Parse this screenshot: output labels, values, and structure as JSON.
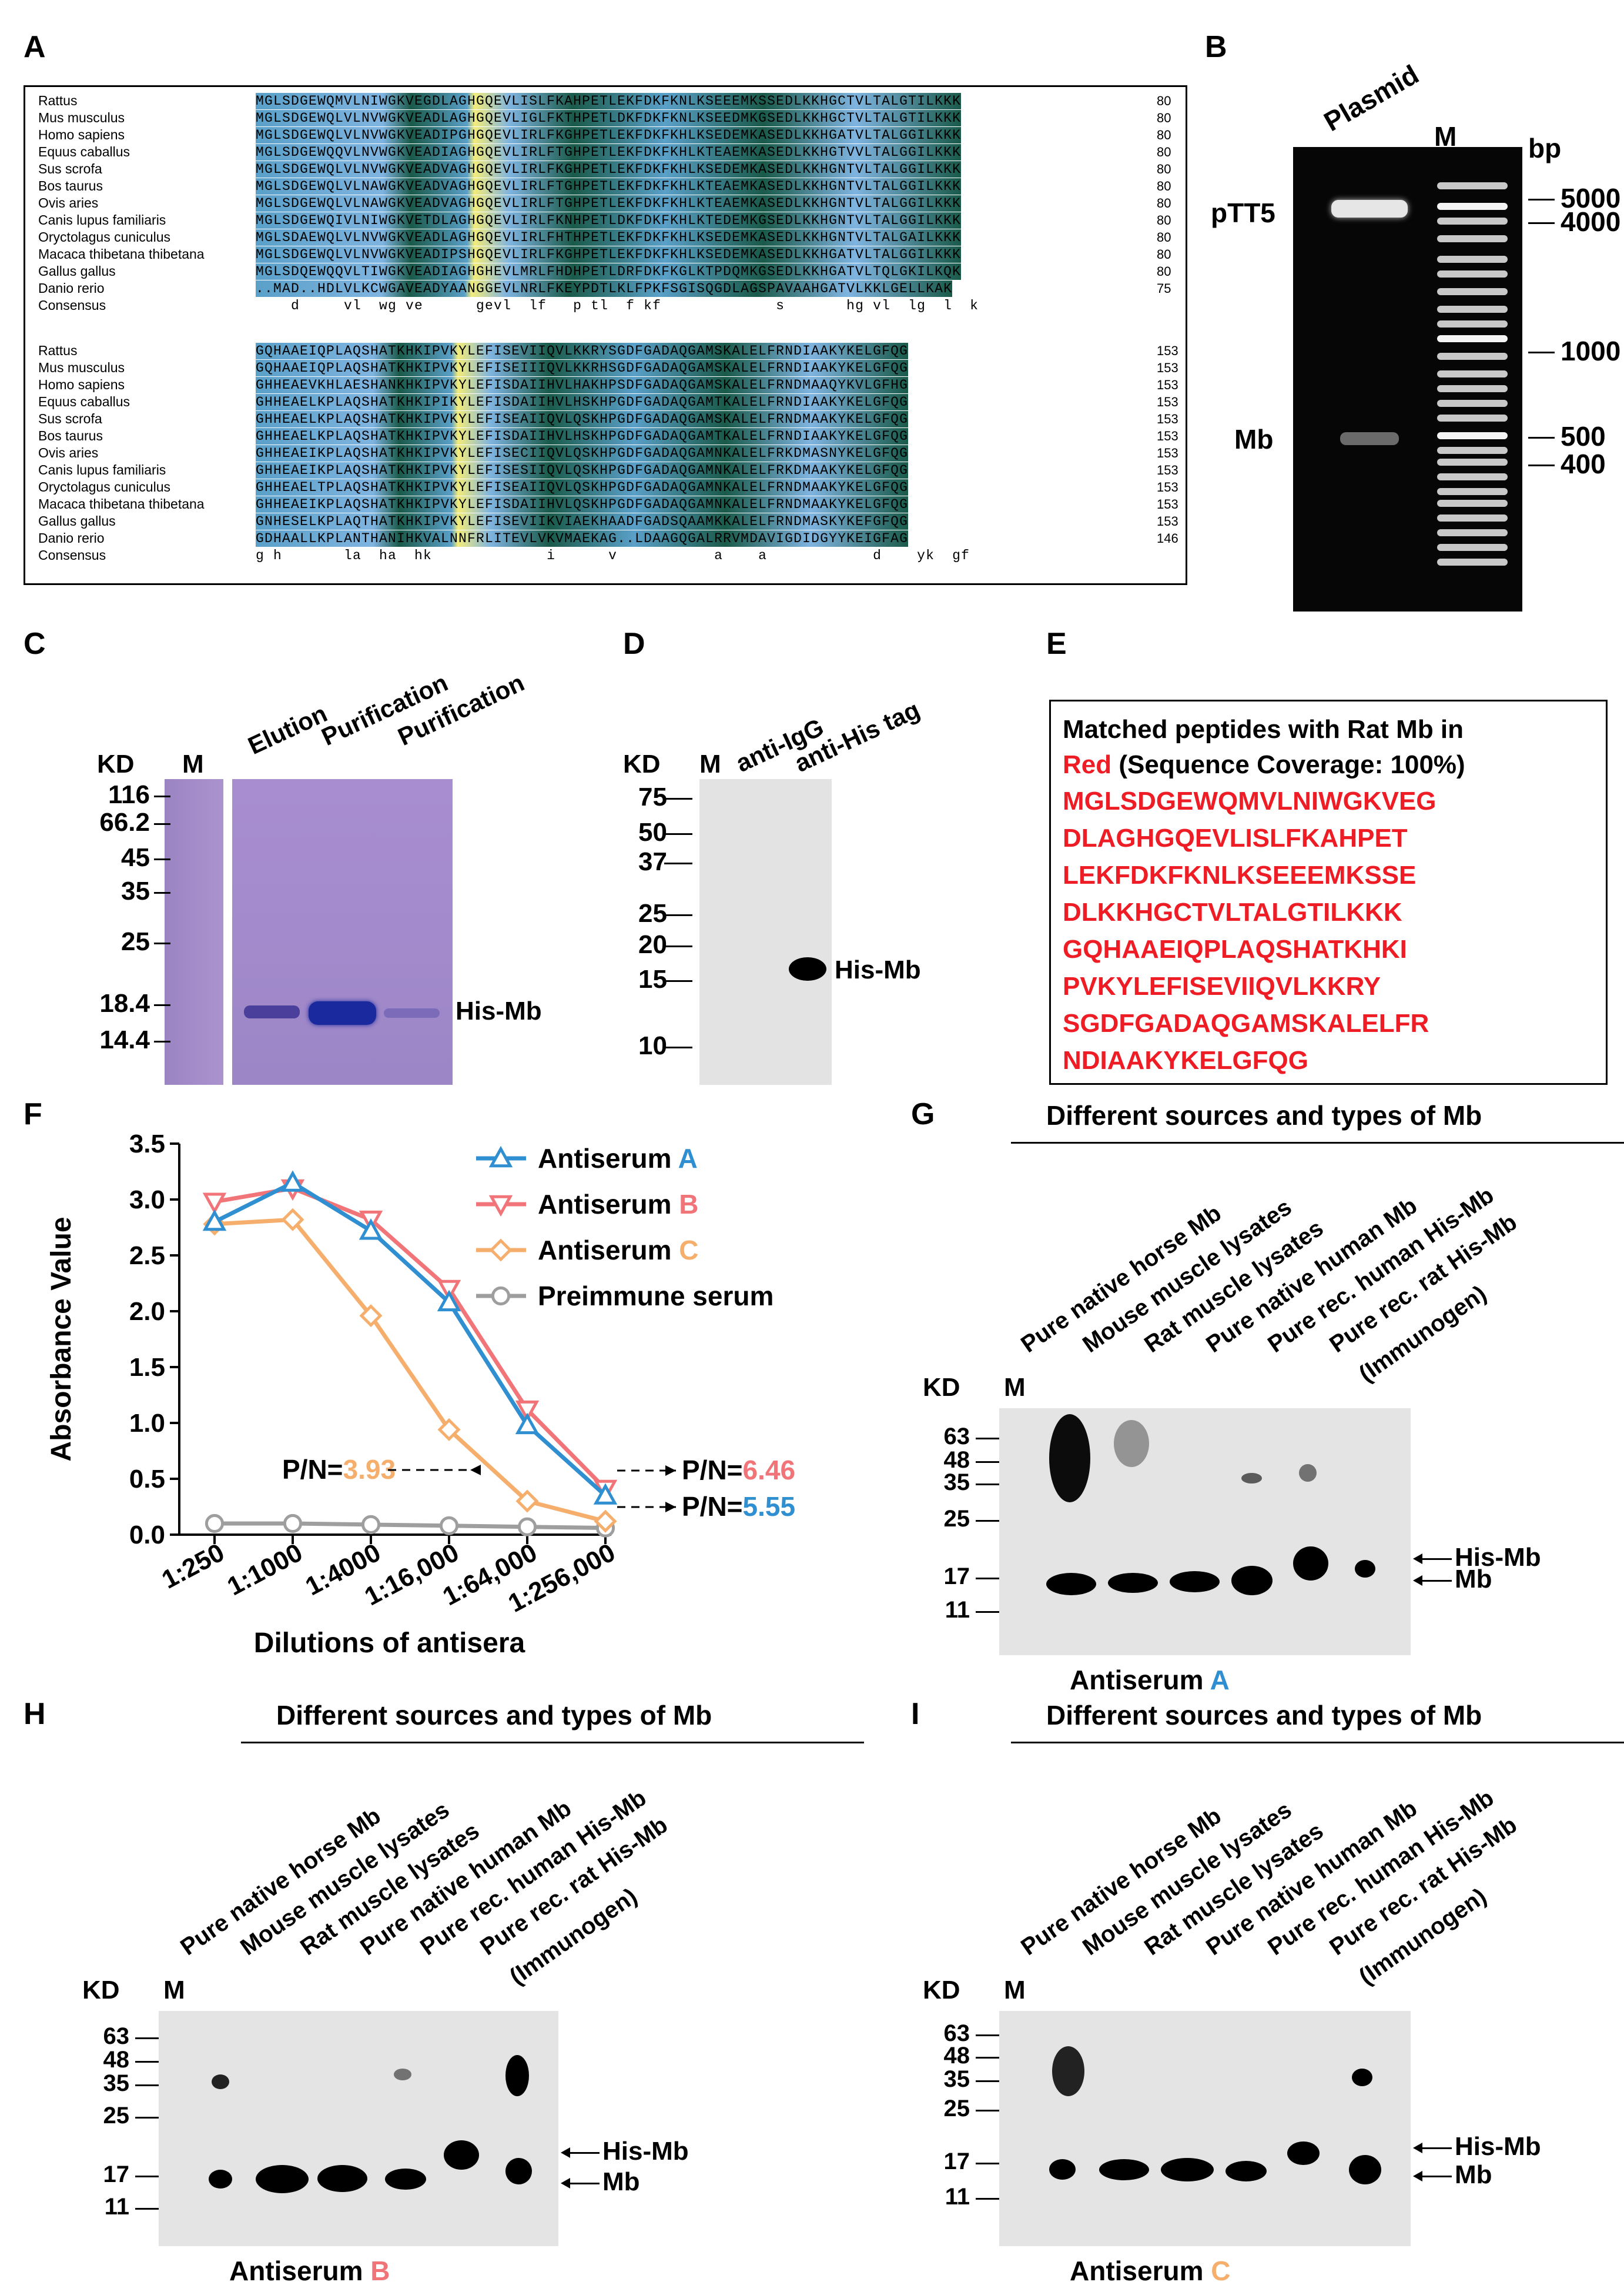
{
  "panels": {
    "A": {
      "label": "A",
      "species_block1": [
        "Rattus",
        "Mus musculus",
        "Homo sapiens",
        "Equus caballus",
        "Sus scrofa",
        "Bos taurus",
        "Ovis aries",
        "Canis lupus familiaris",
        "Oryctolagus cuniculus",
        "Macaca thibetana thibetana",
        "Gallus gallus",
        "Danio rerio",
        "Consensus"
      ],
      "seq_block1": [
        "MGLSDGEWQMVLNIWGKVEGDLAGHGQEVLISLFKAHPETLEKFDKFKNLKSEEEMKSSEDLKKHGCTVLTALGTILKKK",
        "MGLSDGEWQLVLNVWGKVEADLAGHGQEVLIGLFKTHPETLDKFDKFKNLKSEEDMKGSEDLKKHGCTVLTALGTILKKK",
        "MGLSDGEWQLVLNVWGKVEADIPGHGQEVLIRLFKGHPETLEKFDKFKHLKSEDEMKASEDLKKHGATVLTALGGILKKK",
        "MGLSDGEWQQVLNVWGKVEADIAGHGQEVLIRLFTGHPETLEKFDKFKHLKTEAEMKASEDLKKHGTVVLTALGGILKKK",
        "MGLSDGEWQLVLNVWGKVEADVAGHGQEVLIRLFKGHPETLEKFDKFKHLKSEDEMKASEDLKKHGNTVLTALGGILKKK",
        "MGLSDGEWQLVLNAWGKVEADVAGHGQEVLIRLFTGHPETLEKFDKFKHLKTEAEMKASEDLKKHGNTVLTALGGILKKK",
        "MGLSDGEWQLVLNAWGKVEADVAGHGQEVLIRLFTGHPETLEKFDKFKHLKTEAEMKASEDLKKHGNTVLTALGGILKKK",
        "MGLSDGEWQIVLNIWGKVETDLAGHGQEVLIRLFKNHPETLDKFDKFKHLKTEDEMKGSEDLKKHGNTVLTALGGILKKK",
        "MGLSDAEWQLVLNVWGKVEADLAGHGQEVLIRLFHTHPETLEKFDKFKHLKSEDEMKASEDLKKHGNTVLTALGAILKKK",
        "MGLSDGEWQLVLNVWGKVEADIPSHGQEVLIRLFKGHPETLEKFDKFKHLKSEDEMKASEDLKKHGATVLTALGGILKKK",
        "MGLSDQEWQQVLTIWGKVEADIAGHGHEVLMRLFHDHPETLDRFDKFKGLKTPDQMKGSEDLKKHGATVLTQLGKILKQK",
        "..MAD..HDLVLKCWGAVEADYAANGGEVLNRLFKEYPDTLKLFPKFSGISQGDLAGSPAVAAHGATVLKKLGELLKAK",
        "    d     vl  wg ve      gevl  lf   p tl  f kf             s       hg vl  lg  l  k"
      ],
      "nums_block1": [
        "80",
        "80",
        "80",
        "80",
        "80",
        "80",
        "80",
        "80",
        "80",
        "80",
        "80",
        "75",
        ""
      ],
      "species_block2": [
        "Rattus",
        "Mus musculus",
        "Homo sapiens",
        "Equus caballus",
        "Sus scrofa",
        "Bos taurus",
        "Ovis aries",
        "Canis lupus familiaris",
        "Oryctolagus cuniculus",
        "Macaca thibetana thibetana",
        "Gallus gallus",
        "Danio rerio",
        "Consensus"
      ],
      "seq_block2": [
        "GQHAAEIQPLAQSHATKHKIPVKYLEFISEVIIQVLKKRYSGDFGADAQGAMSKALELFRNDIAAKYKELGFQG",
        "GQHAAEIQPLAQSHATKHKIPVKYLEFISEIIIQVLKKRHSGDFGADAQGAMSKALELFRNDIAAKYKELGFQG",
        "GHHEAEVKHLAESHANKHKIPVKYLEFISDAIIHVLHAKHPSDFGADAQGAMSKALELFRNDMAAQYKVLGFHG",
        "GHHEAELKPLAQSHATKHKIPIKYLEFISDAIIHVLHSKHPGDFGADAQGAMTKALELFRNDIAAKYKELGFQG",
        "GHHEAELKPLAQSHATKHKIPVKYLEFISEAIIQVLQSKHPGDFGADAQGAMSKALELFRNDMAAKYKELGFQG",
        "GHHEAELKPLAQSHATKHKIPVKYLEFISDAIIHVLHSKHPGDFGADAQGAMTKALELFRNDIAAKYKELGFQG",
        "GHHEAEIKPLAQSHATKHKIPVKYLEFISECIIQVLQSKHPGDFGADAQGAMNKALELFRKDMASNYKELGFQG",
        "GHHEAEIKPLAQSHATKHKIPVKYLEFISESIIQVLQSKHPGDFGADAQGAMNKALELFRKDMAAKYKELGFQG",
        "GHHEAELTPLAQSHATKHKIPVKYLEFISEAIIQVLQSKHPGDFGADAQGAMNKALELFRNDMAAKYKELGFQG",
        "GHHEAEIKPLAQSHATKHKIPVKYLEFISDAIIHVLQSKHPGDFGADAQGAMNKALELFRNDMAAKYKELGFQG",
        "GNHESELKPLAQTHATKHKIPVKYLEFISEVIIKVIAEKHAADFGADSQAAMKKALELFRNDMASKYKEFGFQG",
        "GDHAALLKPLANTHANIHKVALNNFRLITEVLVKVMAEKAG..LDAAGQGALRRVMDAVIGDIDGYYKEIGFAG",
        "g h       la  ha  hk             i      v           a    a            d    yk  gf"
      ],
      "nums_block2": [
        "153",
        "153",
        "153",
        "153",
        "153",
        "153",
        "153",
        "153",
        "153",
        "153",
        "153",
        "146",
        ""
      ]
    },
    "B": {
      "label": "B",
      "lane_plasmid": "Plasmid",
      "lane_marker": "M",
      "unit": "bp",
      "band_pTT5": "pTT5",
      "band_Mb": "Mb",
      "ladder": [
        "5000",
        "4000",
        "1000",
        "500",
        "400"
      ]
    },
    "C": {
      "label": "C",
      "unit": "KD",
      "marker": "M",
      "lanes": [
        "Elution",
        "Purification",
        "Purification"
      ],
      "mw": [
        "116",
        "66.2",
        "45",
        "35",
        "25",
        "18.4",
        "14.4"
      ],
      "band_label": "His-Mb"
    },
    "D": {
      "label": "D",
      "unit": "KD",
      "marker": "M",
      "lanes": [
        "anti-IgG",
        "anti-His tag"
      ],
      "mw": [
        "75",
        "50",
        "37",
        "25",
        "20",
        "15",
        "10"
      ],
      "band_label": "His-Mb"
    },
    "E": {
      "label": "E",
      "title_line1": "Matched peptides with Rat Mb in",
      "title_red": "Red",
      "title_line2": " (Sequence Coverage: 100%)",
      "peptides": [
        "MGLSDGEWQMVLNIWGKVEG",
        "DLAGHGQEVLISLFKAHPET",
        "LEKFDKFKNLKSEEEMKSSE",
        "DLKKHGCTVLTALGTILKKK",
        "GQHAAEIQPLAQSHATKHKI",
        "PVKYLEFISEVIIQVLKKRY",
        "SGDFGADAQGAMSKALELFR",
        "NDIAAKYKELGFQG"
      ]
    },
    "F": {
      "label": "F",
      "pn_c_prefix": "P/N=",
      "pn_c_value": "3.93",
      "pn_b_prefix": "P/N=",
      "pn_b_value": "6.46",
      "pn_a_prefix": "P/N=",
      "pn_a_value": "5.55"
    },
    "G": {
      "label": "G",
      "header": "Different sources and types of Mb",
      "unit": "KD",
      "marker": "M",
      "lanes": [
        "Pure native horse Mb",
        "Mouse muscle lysates",
        "Rat muscle lysates",
        "Pure native human Mb",
        "Pure rec. human His-Mb",
        "Pure rec. rat His-Mb"
      ],
      "immunogen": "(Immunogen)",
      "mw": [
        "63",
        "48",
        "35",
        "25",
        "17",
        "11"
      ],
      "band_hismb": "His-Mb",
      "band_mb": "Mb",
      "antiserum_prefix": "Antiserum ",
      "antiserum_letter": "A"
    },
    "H": {
      "label": "H",
      "header": "Different sources and types of Mb",
      "unit": "KD",
      "marker": "M",
      "lanes": [
        "Pure native horse Mb",
        "Mouse muscle lysates",
        "Rat muscle lysates",
        "Pure native human Mb",
        "Pure rec. human His-Mb",
        "Pure rec. rat His-Mb"
      ],
      "immunogen": "(Immunogen)",
      "mw": [
        "63",
        "48",
        "35",
        "25",
        "17",
        "11"
      ],
      "band_hismb": "His-Mb",
      "band_mb": "Mb",
      "antiserum_prefix": "Antiserum ",
      "antiserum_letter": "B"
    },
    "I": {
      "label": "I",
      "header": "Different sources and types of Mb",
      "unit": "KD",
      "marker": "M",
      "lanes": [
        "Pure native horse Mb",
        "Mouse muscle lysates",
        "Rat muscle lysates",
        "Pure native human Mb",
        "Pure rec. human His-Mb",
        "Pure rec. rat His-Mb"
      ],
      "immunogen": "(Immunogen)",
      "mw": [
        "63",
        "48",
        "35",
        "25",
        "17",
        "11"
      ],
      "band_hismb": "His-Mb",
      "band_mb": "Mb",
      "antiserum_prefix": "Antiserum ",
      "antiserum_letter": "C"
    }
  },
  "colors": {
    "antiserum_a": "#2f8fd0",
    "antiserum_b": "#f07478",
    "antiserum_c": "#f5ae6b",
    "preimmune": "#9e9e9e",
    "peptide_red": "#ee1c25",
    "gel_dark": "#0b0b0b",
    "coomassie": "#a184c8"
  },
  "chart_data": {
    "type": "line",
    "title": "",
    "xlabel": "Dilutions of antisera",
    "ylabel": "Absorbance Value",
    "categories": [
      "1:250",
      "1:1000",
      "1:4000",
      "1:16,000",
      "1:64,000",
      "1:256,000"
    ],
    "ylim": [
      0,
      3.5
    ],
    "yticks": [
      "0.0",
      "0.5",
      "1.0",
      "1.5",
      "2.0",
      "2.5",
      "3.0",
      "3.5"
    ],
    "legend_position": "top-right",
    "series": [
      {
        "name": "Antiserum A",
        "prefix": "Antiserum ",
        "suffix": "A",
        "marker": "triangle-up",
        "values": [
          2.8,
          3.15,
          2.72,
          2.08,
          0.98,
          0.35
        ]
      },
      {
        "name": "Antiserum B",
        "prefix": "Antiserum ",
        "suffix": "B",
        "marker": "triangle-down",
        "values": [
          2.98,
          3.1,
          2.82,
          2.2,
          1.12,
          0.41
        ]
      },
      {
        "name": "Antiserum C",
        "prefix": "Antiserum ",
        "suffix": "C",
        "marker": "diamond",
        "values": [
          2.78,
          2.82,
          1.96,
          0.94,
          0.3,
          0.12
        ]
      },
      {
        "name": "Preimmune serum",
        "prefix": "Preimmune serum",
        "suffix": "",
        "marker": "circle",
        "values": [
          0.1,
          0.1,
          0.09,
          0.08,
          0.07,
          0.06
        ]
      }
    ]
  }
}
